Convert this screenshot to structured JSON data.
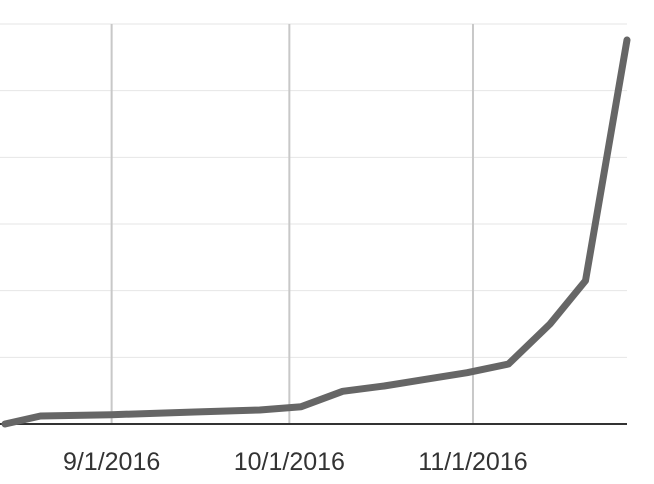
{
  "chart_data": {
    "type": "line",
    "title": "",
    "xlabel": "",
    "ylabel": "",
    "x_ticks": [
      "9/1/2016",
      "10/1/2016",
      "11/1/2016"
    ],
    "xlim": [
      "2016-08-14",
      "2016-11-27"
    ],
    "ylim": [
      0,
      60
    ],
    "y_gridlines": [
      0,
      10,
      20,
      30,
      40,
      50,
      60
    ],
    "grid": true,
    "legend": "none",
    "series": [
      {
        "color": "#666666",
        "points": [
          {
            "x": "2016-08-14",
            "y": 0
          },
          {
            "x": "2016-08-20",
            "y": 1.2
          },
          {
            "x": "2016-09-01",
            "y": 1.4
          },
          {
            "x": "2016-09-15",
            "y": 1.8
          },
          {
            "x": "2016-09-26",
            "y": 2.1
          },
          {
            "x": "2016-10-03",
            "y": 2.6
          },
          {
            "x": "2016-10-10",
            "y": 4.9
          },
          {
            "x": "2016-10-17",
            "y": 5.7
          },
          {
            "x": "2016-10-24",
            "y": 6.7
          },
          {
            "x": "2016-10-31",
            "y": 7.7
          },
          {
            "x": "2016-11-07",
            "y": 9.0
          },
          {
            "x": "2016-11-14",
            "y": 15.0
          },
          {
            "x": "2016-11-20",
            "y": 21.5
          },
          {
            "x": "2016-11-27",
            "y": 57.6
          }
        ]
      }
    ]
  }
}
